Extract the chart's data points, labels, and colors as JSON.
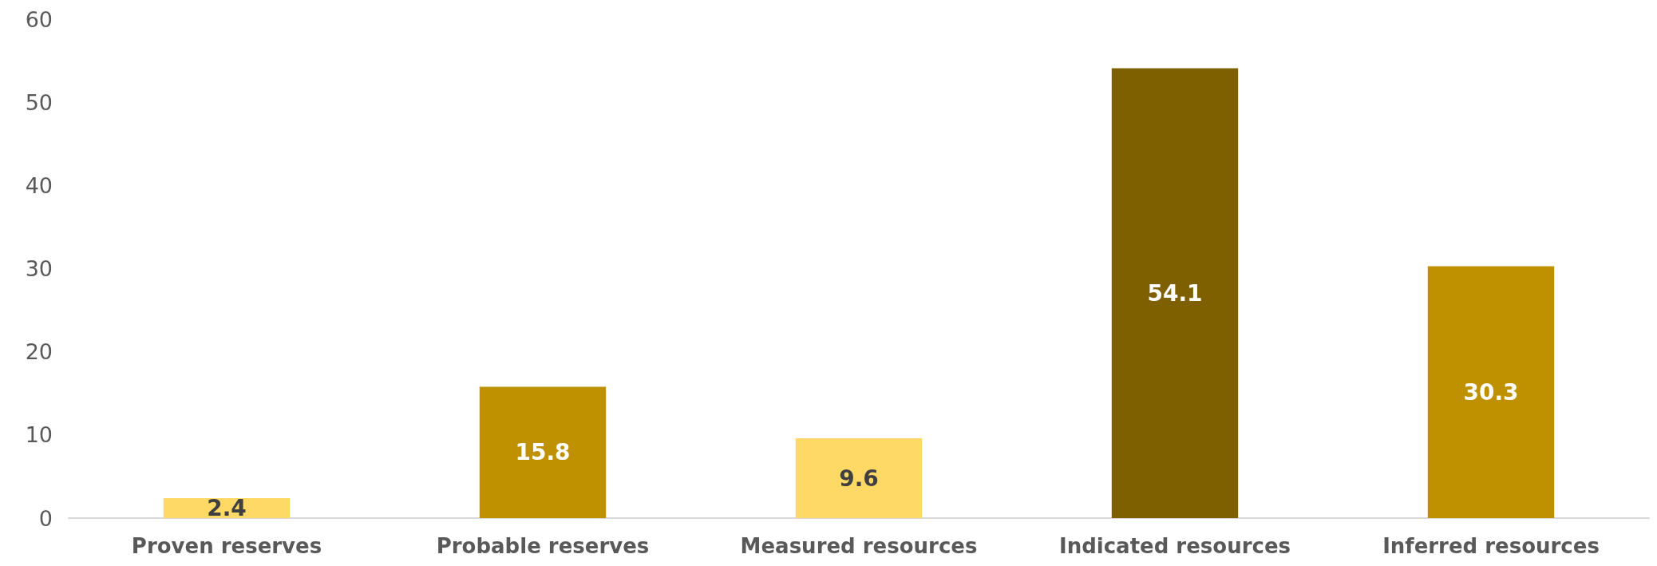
{
  "chart_data": {
    "type": "bar",
    "categories": [
      "Proven reserves",
      "Probable reserves",
      "Measured resources",
      "Indicated resources",
      "Inferred resources"
    ],
    "values": [
      2.4,
      15.8,
      9.6,
      54.1,
      30.3
    ],
    "colors": [
      "#ffd966",
      "#bf9000",
      "#ffd966",
      "#7f6000",
      "#bf9000"
    ],
    "ylim": [
      0,
      60
    ],
    "yticks": [
      0,
      10,
      20,
      30,
      40,
      50,
      60
    ],
    "grid": false,
    "data_labels": true
  }
}
